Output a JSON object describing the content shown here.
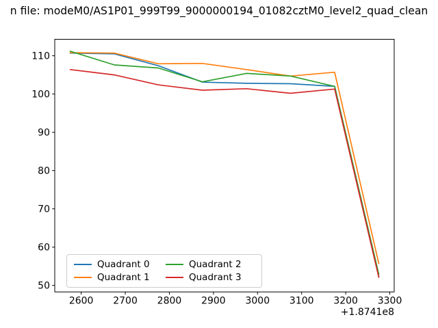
{
  "chart_data": {
    "type": "line",
    "title": "n file: modeM0/AS1P01_999T99_9000000194_01082cztM0_level2_quad_clean",
    "xlabel": "",
    "ylabel": "",
    "x_offset_label": "+1.8741e8",
    "x": [
      2575,
      2675,
      2775,
      2875,
      2975,
      3075,
      3175,
      3275
    ],
    "series": [
      {
        "name": "Quadrant 0",
        "color": "#1f77b4",
        "values": [
          110.7,
          110.5,
          107.4,
          103.1,
          102.8,
          102.7,
          102.0,
          52.3
        ]
      },
      {
        "name": "Quadrant 1",
        "color": "#ff7f0e",
        "values": [
          110.8,
          110.7,
          107.9,
          108.0,
          106.4,
          104.7,
          105.7,
          55.7
        ]
      },
      {
        "name": "Quadrant 2",
        "color": "#2ca02c",
        "values": [
          111.2,
          107.6,
          106.8,
          103.2,
          105.4,
          104.7,
          102.0,
          52.9
        ]
      },
      {
        "name": "Quadrant 3",
        "color": "#d62728",
        "values": [
          106.4,
          105.0,
          102.4,
          101.0,
          101.4,
          100.2,
          101.3,
          52.1
        ]
      }
    ],
    "xticks": [
      2600,
      2700,
      2800,
      2900,
      3000,
      3100,
      3200,
      3300
    ],
    "yticks": [
      50,
      60,
      70,
      80,
      90,
      100,
      110
    ],
    "xlim": [
      2540,
      3310
    ],
    "ylim": [
      48.3,
      114.3
    ],
    "grid": false,
    "legend": {
      "position": "lower left",
      "columns": 2,
      "entries": [
        "Quadrant 0",
        "Quadrant 1",
        "Quadrant 2",
        "Quadrant 3"
      ]
    }
  }
}
